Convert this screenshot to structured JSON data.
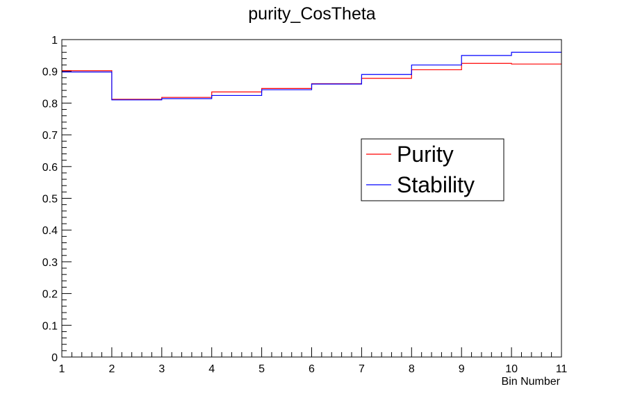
{
  "chart_data": {
    "type": "line",
    "style": "step-histogram",
    "title": "purity_CosTheta",
    "xlabel": "Bin Number",
    "ylabel": "",
    "xlim": [
      1,
      11
    ],
    "ylim": [
      0,
      1
    ],
    "x_ticks": [
      "1",
      "2",
      "3",
      "4",
      "5",
      "6",
      "7",
      "8",
      "9",
      "10",
      "11"
    ],
    "y_ticks": [
      "0",
      "0.1",
      "0.2",
      "0.3",
      "0.4",
      "0.5",
      "0.6",
      "0.7",
      "0.8",
      "0.9",
      "1"
    ],
    "bin_edges": [
      1,
      2,
      3,
      4,
      5,
      6,
      7,
      8,
      9,
      10,
      11
    ],
    "grid": false,
    "legend_position": "center-right",
    "series": [
      {
        "name": "Purity",
        "color": "#ff0000",
        "values": [
          0.902,
          0.812,
          0.818,
          0.835,
          0.846,
          0.861,
          0.878,
          0.905,
          0.925,
          0.923
        ]
      },
      {
        "name": "Stability",
        "color": "#0000ff",
        "values": [
          0.898,
          0.81,
          0.814,
          0.824,
          0.842,
          0.86,
          0.89,
          0.92,
          0.95,
          0.96
        ]
      }
    ]
  }
}
